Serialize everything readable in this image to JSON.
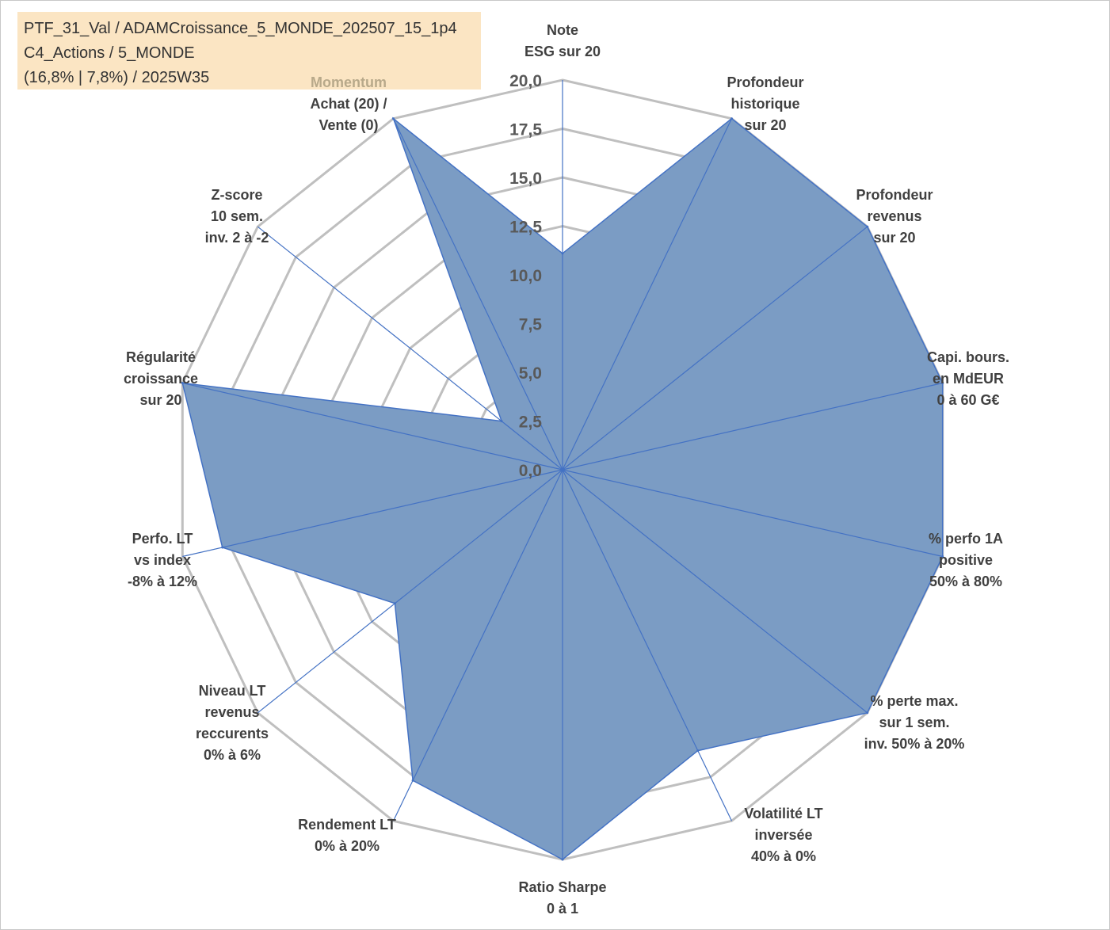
{
  "header": {
    "line1": "PTF_31_Val / ADAMCroissance_5_MONDE_202507_15_1p4",
    "line2": "C4_Actions / 5_MONDE",
    "line3": "(16,8% | 7,8%) / 2025W35"
  },
  "colors": {
    "grid": "#bfbfbf",
    "spoke": "#4472c4",
    "fill": "#7b9cc4",
    "stroke": "#4472c4",
    "header_bg": "#fbe5c3",
    "momentum_label": "#b8a98a"
  },
  "chart_data": {
    "type": "radar",
    "title": "",
    "rmin": 0,
    "rmax": 20,
    "tick_step": 2.5,
    "tick_labels": [
      "0,0",
      "2,5",
      "5,0",
      "7,5",
      "10,0",
      "12,5",
      "15,0",
      "17,5",
      "20,0"
    ],
    "axes": [
      {
        "lines": [
          "Note",
          "ESG sur 20"
        ],
        "value": 11.1
      },
      {
        "lines": [
          "Profondeur",
          "historique",
          "sur 20"
        ],
        "value": 20.0
      },
      {
        "lines": [
          "Profondeur",
          "revenus",
          "sur 20"
        ],
        "value": 20.0
      },
      {
        "lines": [
          "Capi. bours.",
          "en MdEUR",
          "0 à 60 G€"
        ],
        "value": 20.0
      },
      {
        "lines": [
          "% perfo 1A",
          "positive",
          "50% à 80%"
        ],
        "value": 20.0
      },
      {
        "lines": [
          "% perte max.",
          "sur 1 sem.",
          "inv. 50% à 20%"
        ],
        "value": 20.0
      },
      {
        "lines": [
          "Volatilité LT",
          "inversée",
          "40% à 0%"
        ],
        "value": 16.0
      },
      {
        "lines": [
          "Ratio Sharpe",
          "0 à 1"
        ],
        "value": 20.0
      },
      {
        "lines": [
          "Rendement LT",
          "0% à 20%"
        ],
        "value": 17.7
      },
      {
        "lines": [
          "Niveau LT",
          "revenus",
          "reccurents",
          "0% à 6%"
        ],
        "value": 11.0
      },
      {
        "lines": [
          "Perfo. LT",
          "vs index",
          "-8% à 12%"
        ],
        "value": 17.9
      },
      {
        "lines": [
          "Régularité",
          "croissance",
          "sur 20"
        ],
        "value": 20.0
      },
      {
        "lines": [
          "Z-score",
          "10 sem.",
          "inv. 2 à -2"
        ],
        "value": 4.0
      },
      {
        "lines": [
          "Momentum",
          "Achat (20) /",
          "Vente (0)"
        ],
        "value": 20.0
      }
    ]
  }
}
